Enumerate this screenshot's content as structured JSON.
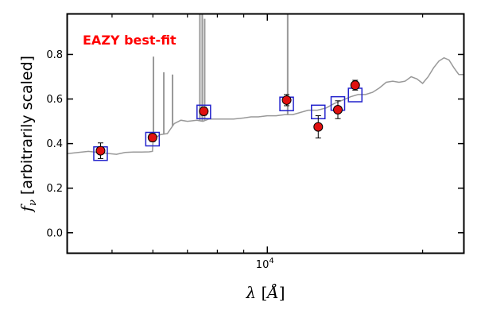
{
  "chart_data": {
    "type": "scatter",
    "title": "",
    "annotation": "EAZY best-fit",
    "xlabel": "λ [Å]",
    "ylabel_pre": "[arbitrarily scaled]",
    "ylabel_symbol": "f",
    "ylabel_sub": "ν",
    "x_scale": "log",
    "xlim": [
      4100,
      24000
    ],
    "ylim": [
      -0.09,
      0.98
    ],
    "y_ticks": [
      0.0,
      0.2,
      0.4,
      0.6,
      0.8
    ],
    "y_tick_labels": [
      "0.0",
      "0.2",
      "0.4",
      "0.6",
      "0.8"
    ],
    "x_major_tick": 10000,
    "x_major_tick_label": "10",
    "x_major_tick_exp": "4",
    "x_minor_ticks": [
      5000,
      6000,
      7000,
      8000,
      9000,
      20000
    ],
    "grid": false,
    "colors": {
      "model": "#999999",
      "model_points": "#2222cc",
      "observed_points": "#e01010",
      "annotation": "#ff0000"
    },
    "series": [
      {
        "role": "model_spectrum",
        "x": [
          4100,
          4300,
          4500,
          4700,
          4900,
          5100,
          5300,
          5500,
          5700,
          5900,
          5990,
          6000,
          6010,
          6200,
          6400,
          6600,
          6800,
          7000,
          7300,
          7500,
          7700,
          8000,
          8300,
          8600,
          9000,
          9300,
          9600,
          10000,
          10400,
          10800,
          11200,
          11600,
          12000,
          12500,
          13000,
          13500,
          14000,
          14500,
          15000,
          15500,
          16000,
          16500,
          17000,
          17500,
          18000,
          18500,
          19000,
          19500,
          20000,
          20500,
          21000,
          21500,
          22000,
          22500,
          23000,
          23500,
          24000
        ],
        "y": [
          0.355,
          0.36,
          0.365,
          0.36,
          0.356,
          0.352,
          0.36,
          0.362,
          0.362,
          0.363,
          0.365,
          0.4,
          0.42,
          0.44,
          0.445,
          0.49,
          0.505,
          0.5,
          0.505,
          0.5,
          0.51,
          0.51,
          0.51,
          0.51,
          0.515,
          0.52,
          0.52,
          0.525,
          0.525,
          0.53,
          0.53,
          0.54,
          0.55,
          0.55,
          0.56,
          0.58,
          0.595,
          0.61,
          0.62,
          0.62,
          0.63,
          0.65,
          0.675,
          0.68,
          0.675,
          0.68,
          0.7,
          0.69,
          0.67,
          0.7,
          0.74,
          0.77,
          0.785,
          0.775,
          0.74,
          0.71,
          0.71
        ]
      },
      {
        "role": "emission_lines",
        "x": [
          6015,
          6300,
          6550,
          7400,
          7480,
          7560,
          10950
        ],
        "y": [
          0.79,
          0.72,
          0.71,
          0.98,
          0.98,
          0.96,
          0.98
        ]
      },
      {
        "role": "model_photometry",
        "x": [
          4750,
          5990,
          7530,
          10900,
          12550,
          13700,
          14800
        ],
        "y": [
          0.355,
          0.42,
          0.542,
          0.578,
          0.542,
          0.58,
          0.618
        ]
      },
      {
        "role": "observed_photometry",
        "x": [
          4750,
          5990,
          7530,
          10900,
          12550,
          13700,
          14800
        ],
        "y": [
          0.368,
          0.427,
          0.545,
          0.595,
          0.475,
          0.552,
          0.662
        ],
        "yerr": [
          0.035,
          0.018,
          0.018,
          0.025,
          0.05,
          0.04,
          0.022
        ]
      }
    ]
  }
}
